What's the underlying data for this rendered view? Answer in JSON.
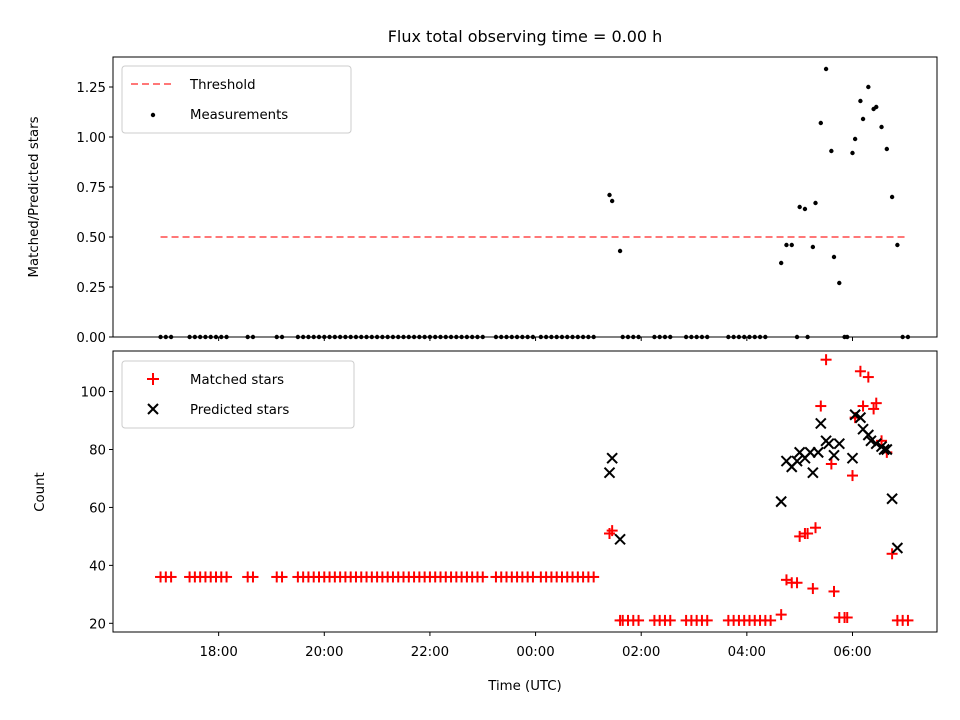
{
  "chart_data": [
    {
      "type": "scatter",
      "title": "Flux total observing time = 0.00 h",
      "xlabel": "",
      "ylabel": "Matched/Predicted stars",
      "ylim": [
        0,
        1.4
      ],
      "yticks": [
        "0.00",
        "0.25",
        "0.50",
        "0.75",
        "1.00",
        "1.25"
      ],
      "legend_position": "top-left",
      "threshold": {
        "name": "Threshold",
        "value": 0.5,
        "x_start": 16.9,
        "x_end": 31.0,
        "color": "#ff7777"
      },
      "series": [
        {
          "name": "Measurements",
          "color": "#000000",
          "points": [
            [
              16.9,
              0
            ],
            [
              17.0,
              0
            ],
            [
              17.1,
              0
            ],
            [
              17.45,
              0
            ],
            [
              17.55,
              0
            ],
            [
              17.65,
              0
            ],
            [
              17.75,
              0
            ],
            [
              17.85,
              0
            ],
            [
              17.95,
              0
            ],
            [
              18.05,
              0
            ],
            [
              18.15,
              0
            ],
            [
              18.55,
              0
            ],
            [
              18.65,
              0
            ],
            [
              19.1,
              0
            ],
            [
              19.2,
              0
            ],
            [
              19.5,
              0
            ],
            [
              19.6,
              0
            ],
            [
              19.7,
              0
            ],
            [
              19.8,
              0
            ],
            [
              19.9,
              0
            ],
            [
              20.0,
              0
            ],
            [
              20.1,
              0
            ],
            [
              20.2,
              0
            ],
            [
              20.3,
              0
            ],
            [
              20.4,
              0
            ],
            [
              20.5,
              0
            ],
            [
              20.6,
              0
            ],
            [
              20.7,
              0
            ],
            [
              20.8,
              0
            ],
            [
              20.9,
              0
            ],
            [
              21.0,
              0
            ],
            [
              21.1,
              0
            ],
            [
              21.2,
              0
            ],
            [
              21.3,
              0
            ],
            [
              21.4,
              0
            ],
            [
              21.5,
              0
            ],
            [
              21.6,
              0
            ],
            [
              21.7,
              0
            ],
            [
              21.8,
              0
            ],
            [
              21.9,
              0
            ],
            [
              22.0,
              0
            ],
            [
              22.1,
              0
            ],
            [
              22.2,
              0
            ],
            [
              22.3,
              0
            ],
            [
              22.4,
              0
            ],
            [
              22.5,
              0
            ],
            [
              22.6,
              0
            ],
            [
              22.7,
              0
            ],
            [
              22.8,
              0
            ],
            [
              22.9,
              0
            ],
            [
              23.0,
              0
            ],
            [
              23.25,
              0
            ],
            [
              23.35,
              0
            ],
            [
              23.45,
              0
            ],
            [
              23.55,
              0
            ],
            [
              23.65,
              0
            ],
            [
              23.75,
              0
            ],
            [
              23.85,
              0
            ],
            [
              23.95,
              0
            ],
            [
              24.1,
              0
            ],
            [
              24.2,
              0
            ],
            [
              24.3,
              0
            ],
            [
              24.4,
              0
            ],
            [
              24.5,
              0
            ],
            [
              24.6,
              0
            ],
            [
              24.7,
              0
            ],
            [
              24.8,
              0
            ],
            [
              24.9,
              0
            ],
            [
              25.0,
              0
            ],
            [
              25.1,
              0
            ],
            [
              25.4,
              0.71
            ],
            [
              25.45,
              0.68
            ],
            [
              25.6,
              0.43
            ],
            [
              25.65,
              0
            ],
            [
              25.75,
              0
            ],
            [
              25.85,
              0
            ],
            [
              25.95,
              0
            ],
            [
              26.25,
              0
            ],
            [
              26.35,
              0
            ],
            [
              26.45,
              0
            ],
            [
              26.55,
              0
            ],
            [
              26.85,
              0
            ],
            [
              26.95,
              0
            ],
            [
              27.05,
              0
            ],
            [
              27.15,
              0
            ],
            [
              27.25,
              0
            ],
            [
              27.65,
              0
            ],
            [
              27.75,
              0
            ],
            [
              27.85,
              0
            ],
            [
              27.95,
              0
            ],
            [
              28.05,
              0
            ],
            [
              28.15,
              0
            ],
            [
              28.25,
              0
            ],
            [
              28.35,
              0
            ],
            [
              28.65,
              0.37
            ],
            [
              28.75,
              0.46
            ],
            [
              28.85,
              0.46
            ],
            [
              28.95,
              0
            ],
            [
              29.0,
              0.65
            ],
            [
              29.1,
              0.64
            ],
            [
              29.15,
              0
            ],
            [
              29.25,
              0.45
            ],
            [
              29.3,
              0.67
            ],
            [
              29.4,
              1.07
            ],
            [
              29.5,
              1.34
            ],
            [
              29.6,
              0.93
            ],
            [
              29.65,
              0.4
            ],
            [
              29.75,
              0.27
            ],
            [
              29.85,
              0
            ],
            [
              29.9,
              0
            ],
            [
              30.0,
              0.92
            ],
            [
              30.05,
              0.99
            ],
            [
              30.15,
              1.18
            ],
            [
              30.2,
              1.09
            ],
            [
              30.3,
              1.25
            ],
            [
              30.4,
              1.14
            ],
            [
              30.45,
              1.15
            ],
            [
              30.55,
              1.05
            ],
            [
              30.65,
              0.94
            ],
            [
              30.75,
              0.7
            ],
            [
              30.85,
              0.46
            ],
            [
              30.95,
              0
            ],
            [
              31.05,
              0
            ]
          ]
        }
      ]
    },
    {
      "type": "scatter",
      "title": "",
      "xlabel": "Time (UTC)",
      "ylabel": "Count",
      "ylim": [
        17,
        114
      ],
      "yticks": [
        "20",
        "40",
        "60",
        "80",
        "100"
      ],
      "xticks": [
        "18:00",
        "20:00",
        "22:00",
        "00:00",
        "02:00",
        "04:00",
        "06:00"
      ],
      "legend_position": "top-left",
      "series": [
        {
          "name": "Matched stars",
          "marker": "plus",
          "color": "#ff0000",
          "points": [
            [
              16.9,
              36
            ],
            [
              17.0,
              36
            ],
            [
              17.1,
              36
            ],
            [
              17.45,
              36
            ],
            [
              17.55,
              36
            ],
            [
              17.65,
              36
            ],
            [
              17.75,
              36
            ],
            [
              17.85,
              36
            ],
            [
              17.95,
              36
            ],
            [
              18.05,
              36
            ],
            [
              18.15,
              36
            ],
            [
              18.55,
              36
            ],
            [
              18.65,
              36
            ],
            [
              19.1,
              36
            ],
            [
              19.2,
              36
            ],
            [
              19.5,
              36
            ],
            [
              19.6,
              36
            ],
            [
              19.7,
              36
            ],
            [
              19.8,
              36
            ],
            [
              19.9,
              36
            ],
            [
              20.0,
              36
            ],
            [
              20.1,
              36
            ],
            [
              20.2,
              36
            ],
            [
              20.3,
              36
            ],
            [
              20.4,
              36
            ],
            [
              20.5,
              36
            ],
            [
              20.6,
              36
            ],
            [
              20.7,
              36
            ],
            [
              20.8,
              36
            ],
            [
              20.9,
              36
            ],
            [
              21.0,
              36
            ],
            [
              21.1,
              36
            ],
            [
              21.2,
              36
            ],
            [
              21.3,
              36
            ],
            [
              21.4,
              36
            ],
            [
              21.5,
              36
            ],
            [
              21.6,
              36
            ],
            [
              21.7,
              36
            ],
            [
              21.8,
              36
            ],
            [
              21.9,
              36
            ],
            [
              22.0,
              36
            ],
            [
              22.1,
              36
            ],
            [
              22.2,
              36
            ],
            [
              22.3,
              36
            ],
            [
              22.4,
              36
            ],
            [
              22.5,
              36
            ],
            [
              22.6,
              36
            ],
            [
              22.7,
              36
            ],
            [
              22.8,
              36
            ],
            [
              22.9,
              36
            ],
            [
              23.0,
              36
            ],
            [
              23.25,
              36
            ],
            [
              23.35,
              36
            ],
            [
              23.45,
              36
            ],
            [
              23.55,
              36
            ],
            [
              23.65,
              36
            ],
            [
              23.75,
              36
            ],
            [
              23.85,
              36
            ],
            [
              23.95,
              36
            ],
            [
              24.1,
              36
            ],
            [
              24.2,
              36
            ],
            [
              24.3,
              36
            ],
            [
              24.4,
              36
            ],
            [
              24.5,
              36
            ],
            [
              24.6,
              36
            ],
            [
              24.7,
              36
            ],
            [
              24.8,
              36
            ],
            [
              24.9,
              36
            ],
            [
              25.0,
              36
            ],
            [
              25.1,
              36
            ],
            [
              25.4,
              51
            ],
            [
              25.45,
              52
            ],
            [
              25.6,
              21
            ],
            [
              25.65,
              21
            ],
            [
              25.75,
              21
            ],
            [
              25.85,
              21
            ],
            [
              25.95,
              21
            ],
            [
              26.25,
              21
            ],
            [
              26.35,
              21
            ],
            [
              26.45,
              21
            ],
            [
              26.55,
              21
            ],
            [
              26.85,
              21
            ],
            [
              26.95,
              21
            ],
            [
              27.05,
              21
            ],
            [
              27.15,
              21
            ],
            [
              27.25,
              21
            ],
            [
              27.65,
              21
            ],
            [
              27.75,
              21
            ],
            [
              27.85,
              21
            ],
            [
              27.95,
              21
            ],
            [
              28.05,
              21
            ],
            [
              28.15,
              21
            ],
            [
              28.25,
              21
            ],
            [
              28.35,
              21
            ],
            [
              28.45,
              21
            ],
            [
              28.65,
              23
            ],
            [
              28.75,
              35
            ],
            [
              28.85,
              34
            ],
            [
              28.95,
              34
            ],
            [
              29.0,
              50
            ],
            [
              29.1,
              51
            ],
            [
              29.15,
              51
            ],
            [
              29.25,
              32
            ],
            [
              29.3,
              53
            ],
            [
              29.4,
              95
            ],
            [
              29.5,
              111
            ],
            [
              29.6,
              75
            ],
            [
              29.65,
              31
            ],
            [
              29.75,
              22
            ],
            [
              29.85,
              22
            ],
            [
              29.9,
              22
            ],
            [
              30.0,
              71
            ],
            [
              30.05,
              91
            ],
            [
              30.15,
              107
            ],
            [
              30.2,
              95
            ],
            [
              30.3,
              105
            ],
            [
              30.4,
              94
            ],
            [
              30.45,
              96
            ],
            [
              30.55,
              83
            ],
            [
              30.65,
              79
            ],
            [
              30.75,
              44
            ],
            [
              30.85,
              21
            ],
            [
              30.95,
              21
            ],
            [
              31.05,
              21
            ]
          ]
        },
        {
          "name": "Predicted stars",
          "marker": "x",
          "color": "#000000",
          "points": [
            [
              25.4,
              72
            ],
            [
              25.45,
              77
            ],
            [
              25.6,
              49
            ],
            [
              28.65,
              62
            ],
            [
              28.75,
              76
            ],
            [
              28.85,
              74
            ],
            [
              28.95,
              76
            ],
            [
              29.0,
              79
            ],
            [
              29.1,
              77
            ],
            [
              29.2,
              79
            ],
            [
              29.25,
              72
            ],
            [
              29.35,
              79
            ],
            [
              29.4,
              89
            ],
            [
              29.5,
              83
            ],
            [
              29.55,
              82
            ],
            [
              29.65,
              78
            ],
            [
              29.75,
              82
            ],
            [
              30.0,
              77
            ],
            [
              30.05,
              92
            ],
            [
              30.15,
              91
            ],
            [
              30.2,
              87
            ],
            [
              30.3,
              85
            ],
            [
              30.35,
              83
            ],
            [
              30.45,
              82
            ],
            [
              30.55,
              81
            ],
            [
              30.6,
              80
            ],
            [
              30.65,
              80
            ],
            [
              30.75,
              63
            ],
            [
              30.85,
              46
            ]
          ]
        }
      ]
    }
  ]
}
